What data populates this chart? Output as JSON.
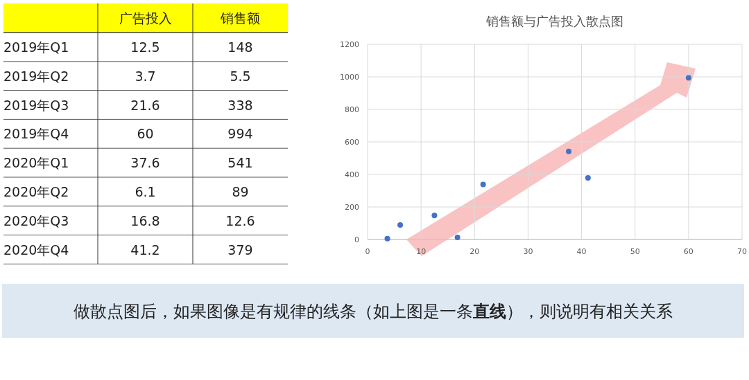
{
  "chart_data": [
    {
      "type": "other",
      "data_labels": true,
      "categories": [
        "2019年Q1",
        "2019年Q2",
        "2019年Q3",
        "2019年Q4",
        "2020年Q1",
        "2020年Q2",
        "2020年Q3",
        "2020年Q4"
      ],
      "series": [
        {
          "name": "广告投入",
          "values": [
            12.5,
            3.7,
            21.6,
            60,
            37.6,
            6.1,
            16.8,
            41.2
          ]
        },
        {
          "name": "销售额",
          "values": [
            148,
            5.5,
            338,
            994,
            541,
            89,
            12.6,
            379
          ]
        }
      ]
    },
    {
      "type": "scatter",
      "title": "销售额与广告投入散点图",
      "x": [
        12.5,
        3.7,
        21.6,
        60,
        37.6,
        6.1,
        16.8,
        41.2
      ],
      "values": [
        148,
        5.5,
        338,
        994,
        541,
        89,
        12.6,
        379
      ],
      "color": "#4472c4",
      "marker": "circle",
      "grid": true,
      "xlim": [
        0,
        70
      ],
      "xticks": [
        0,
        10,
        20,
        30,
        40,
        50,
        60,
        70
      ],
      "ylim": [
        0,
        1200
      ],
      "yticks": [
        0,
        200,
        400,
        600,
        800,
        1000,
        1200
      ],
      "annotations": [
        "做散点图后，如果图像是有规律的线条（如上图是一条**直线**），则说明有相关关系"
      ]
    }
  ]
}
